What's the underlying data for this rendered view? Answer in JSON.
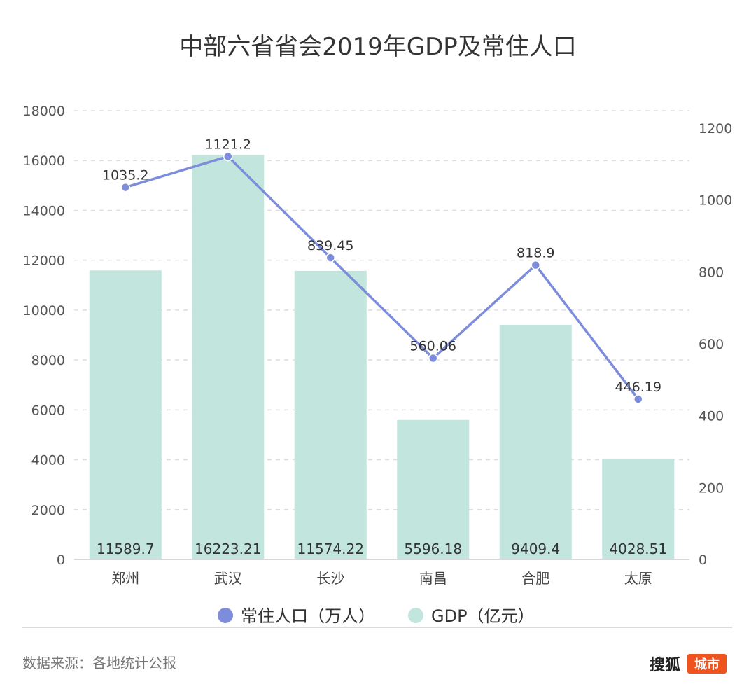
{
  "chart_data": {
    "type": "bar",
    "title": "中部六省省会2019年GDP及常住人口",
    "categories": [
      "郑州",
      "武汉",
      "长沙",
      "南昌",
      "合肥",
      "太原"
    ],
    "series": [
      {
        "name": "GDP（亿元）",
        "type": "bar",
        "axis": "left",
        "color": "#c2e6dd",
        "values": [
          11589.7,
          16223.21,
          11574.22,
          5596.18,
          9409.4,
          4028.51
        ],
        "labels": [
          "11589.7",
          "16223.21",
          "11574.22",
          "5596.18",
          "9409.4",
          "4028.51"
        ]
      },
      {
        "name": "常住人口（万人）",
        "type": "line",
        "axis": "right",
        "color": "#7d8ddc",
        "values": [
          1035.2,
          1121.2,
          839.45,
          560.06,
          818.9,
          446.19
        ],
        "labels": [
          "1035.2",
          "1121.2",
          "839.45",
          "560.06",
          "818.9",
          "446.19"
        ]
      }
    ],
    "y_left": {
      "ylim": [
        0,
        18000
      ],
      "ticks": [
        "0",
        "2000",
        "4000",
        "6000",
        "8000",
        "10000",
        "12000",
        "14000",
        "16000",
        "18000"
      ]
    },
    "y_right": {
      "ylim": [
        0,
        1200
      ],
      "ticks": [
        "0",
        "200",
        "400",
        "600",
        "800",
        "1000",
        "1200"
      ]
    },
    "grid": "dashed-horizontal",
    "legend": "bottom-center"
  },
  "legend": [
    "常住人口（万人）",
    "GDP（亿元）"
  ],
  "footer": {
    "source": "数据来源：各地统计公报",
    "brand": "搜狐",
    "brand_badge": "城市",
    "brand_color": "#f0541e"
  }
}
